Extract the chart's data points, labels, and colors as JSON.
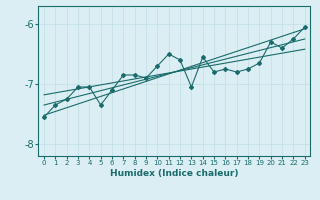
{
  "xlabel": "Humidex (Indice chaleur)",
  "xlim": [
    -0.5,
    23.5
  ],
  "ylim": [
    -8.2,
    -5.7
  ],
  "yticks": [
    -8,
    -7,
    -6
  ],
  "xticks": [
    0,
    1,
    2,
    3,
    4,
    5,
    6,
    7,
    8,
    9,
    10,
    11,
    12,
    13,
    14,
    15,
    16,
    17,
    18,
    19,
    20,
    21,
    22,
    23
  ],
  "bg_color": "#daeef3",
  "line_color": "#1a6b6b",
  "grid_color": "#c0dde4",
  "data_x": [
    0,
    1,
    2,
    3,
    4,
    5,
    6,
    7,
    8,
    9,
    10,
    11,
    12,
    13,
    14,
    15,
    16,
    17,
    18,
    19,
    20,
    21,
    22,
    23
  ],
  "data_y": [
    -7.55,
    -7.35,
    -7.25,
    -7.05,
    -7.05,
    -7.35,
    -7.1,
    -6.85,
    -6.85,
    -6.9,
    -6.7,
    -6.5,
    -6.6,
    -7.05,
    -6.55,
    -6.8,
    -6.75,
    -6.8,
    -6.75,
    -6.65,
    -6.3,
    -6.4,
    -6.25,
    -6.05
  ],
  "reg_line_x0": 0,
  "reg_line_x1": 23,
  "reg_line_y0": -7.52,
  "reg_line_y1": -6.08,
  "reg2_line_y0": -7.35,
  "reg2_line_y1": -6.25,
  "reg3_line_y0": -7.18,
  "reg3_line_y1": -6.42
}
